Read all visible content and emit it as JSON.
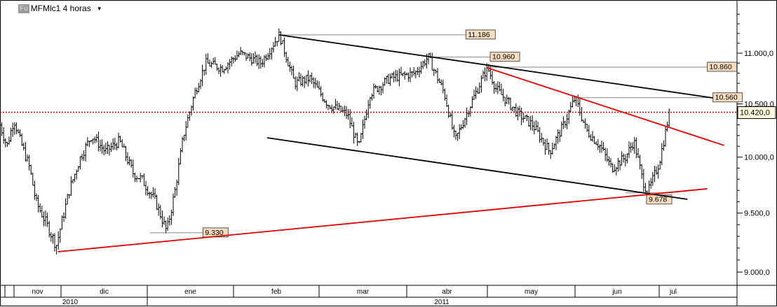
{
  "header": {
    "badge": "Fu",
    "title": "MFMlc1 4 horas",
    "dropdown_icon": "caret-down-icon"
  },
  "chart_data": {
    "type": "ohlc",
    "title": "MFMlc1 4 horas",
    "y_scale": "log",
    "ylim": [
      8900,
      11450
    ],
    "y_ticks": [
      "9.000,0",
      "9.500,0",
      "10.000,0",
      "10.500,0",
      "11.000,0"
    ],
    "y_tick_values": [
      9000,
      9500,
      10000,
      10500,
      11000
    ],
    "x_months": [
      "nov",
      "dic",
      "ene",
      "feb",
      "mar",
      "abr",
      "may",
      "jun",
      "jul"
    ],
    "x_years": [
      "2010",
      "2011"
    ],
    "grid": false,
    "colors": {
      "bars": "#000000",
      "trend_black": "#000000",
      "trend_red": "#e00000",
      "current": "#cc0000",
      "label_bg": "#f8dcc0"
    },
    "current_price": {
      "value": 10420,
      "label": "10.420,0"
    },
    "series": [
      [
        "2010-10-26",
        10300
      ],
      [
        "2010-10-29",
        10100
      ],
      [
        "2010-11-01",
        10350
      ],
      [
        "2010-11-05",
        10150
      ],
      [
        "2010-11-11",
        9900
      ],
      [
        "2010-11-15",
        9600
      ],
      [
        "2010-11-22",
        9400
      ],
      [
        "2010-11-28",
        9220
      ],
      [
        "2010-12-04",
        9700
      ],
      [
        "2010-12-08",
        10000
      ],
      [
        "2010-12-12",
        10200
      ],
      [
        "2010-12-17",
        10050
      ],
      [
        "2010-12-22",
        10150
      ],
      [
        "2010-12-27",
        9850
      ],
      [
        "2010-12-30",
        9800
      ],
      [
        "2011-01-04",
        9600
      ],
      [
        "2011-01-08",
        9340
      ],
      [
        "2011-01-11",
        9700
      ],
      [
        "2011-01-14",
        10200
      ],
      [
        "2011-01-18",
        10600
      ],
      [
        "2011-01-22",
        10900
      ],
      [
        "2011-01-28",
        10850
      ],
      [
        "2011-02-03",
        11000
      ],
      [
        "2011-02-10",
        10900
      ],
      [
        "2011-02-16",
        11186
      ],
      [
        "2011-02-21",
        10700
      ],
      [
        "2011-02-26",
        10750
      ],
      [
        "2011-03-04",
        10500
      ],
      [
        "2011-03-11",
        10400
      ],
      [
        "2011-03-15",
        10080
      ],
      [
        "2011-03-19",
        10600
      ],
      [
        "2011-03-26",
        10750
      ],
      [
        "2011-04-04",
        10800
      ],
      [
        "2011-04-09",
        10960
      ],
      [
        "2011-04-15",
        10600
      ],
      [
        "2011-04-19",
        10150
      ],
      [
        "2011-04-24",
        10450
      ],
      [
        "2011-05-01",
        10860
      ],
      [
        "2011-05-04",
        10650
      ],
      [
        "2011-05-12",
        10400
      ],
      [
        "2011-05-17",
        10300
      ],
      [
        "2011-05-23",
        10050
      ],
      [
        "2011-05-28",
        10300
      ],
      [
        "2011-06-01",
        10560
      ],
      [
        "2011-06-05",
        10250
      ],
      [
        "2011-06-10",
        10100
      ],
      [
        "2011-06-14",
        9900
      ],
      [
        "2011-06-19",
        10000
      ],
      [
        "2011-06-22",
        10150
      ],
      [
        "2011-06-25",
        9800
      ],
      [
        "2011-06-27",
        9678
      ],
      [
        "2011-07-01",
        9950
      ],
      [
        "2011-07-03",
        10200
      ],
      [
        "2011-07-05",
        10470
      ]
    ],
    "trendlines": [
      {
        "color": "black",
        "from": [
          "2011-02-16",
          11186
        ],
        "to": [
          "2011-07-20",
          10558
        ]
      },
      {
        "color": "black",
        "from": [
          "2011-02-12",
          10179
        ],
        "to": [
          "2011-07-11",
          9621
        ]
      },
      {
        "color": "red",
        "from": [
          "2011-05-01",
          10853
        ],
        "to": [
          "2011-07-24",
          10108
        ]
      },
      {
        "color": "red",
        "from": [
          "2010-11-29",
          9169
        ],
        "to": [
          "2011-07-18",
          9714
        ]
      }
    ],
    "level_markers": [
      {
        "label": "11.186",
        "value": 11186,
        "from": "2011-02-16",
        "to": "2011-04-23"
      },
      {
        "label": "10.960",
        "value": 10960,
        "from": "2011-04-09",
        "to": "2011-05-02"
      },
      {
        "label": "10.860",
        "value": 10860,
        "from": "2011-05-01",
        "to": "2011-07-18"
      },
      {
        "label": "10.560",
        "value": 10560,
        "from": "2011-06-01",
        "to": "2011-07-20"
      },
      {
        "label": "9.330",
        "value": 9330,
        "from": "2011-01-02",
        "to": "2011-01-21"
      },
      {
        "label": "9.678",
        "value": 9678,
        "from": "2011-06-19",
        "to": "2011-07-03"
      }
    ]
  }
}
